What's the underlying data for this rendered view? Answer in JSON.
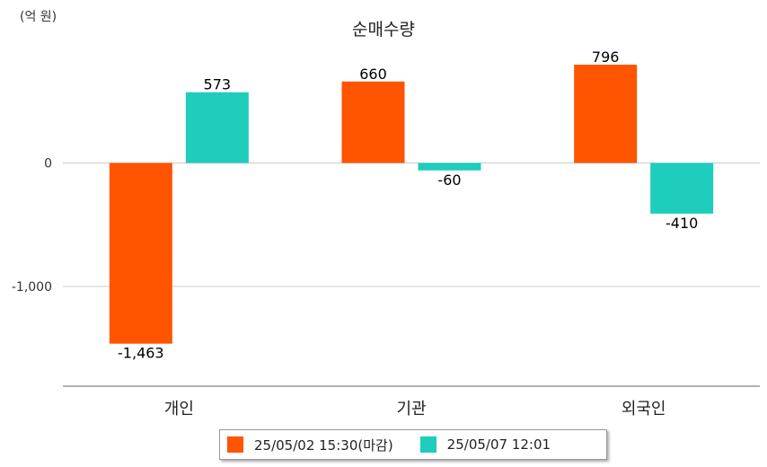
{
  "unit_label": "(억 원)",
  "chart_data": {
    "type": "bar",
    "title": "순매수량",
    "categories": [
      "개인",
      "기관",
      "외국인"
    ],
    "series": [
      {
        "name": "25/05/02 15:30(마감)",
        "color": "#ff5400",
        "values": [
          -1463,
          660,
          796
        ],
        "labels": [
          "-1,463",
          "660",
          "796"
        ]
      },
      {
        "name": "25/05/07 12:01",
        "color": "#1ecdbc",
        "values": [
          573,
          -60,
          -410
        ],
        "labels": [
          "573",
          "-60",
          "-410"
        ]
      }
    ],
    "yticks": [
      0,
      -1000
    ],
    "ytick_labels": [
      "0",
      "-1,000"
    ],
    "ylim": [
      -1820,
      1000
    ],
    "grid": true,
    "legend_position": "bottom"
  }
}
